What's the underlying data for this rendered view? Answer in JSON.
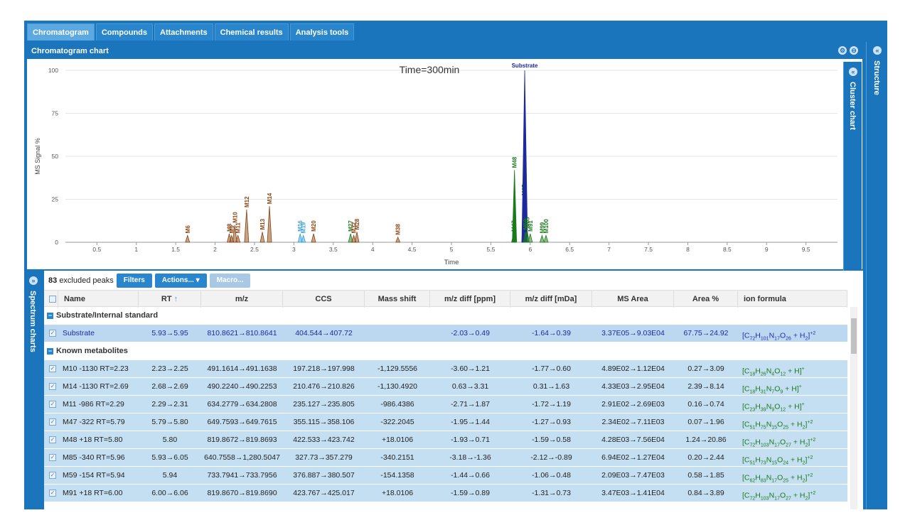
{
  "tabs": [
    "Chromatogram",
    "Compounds",
    "Attachments",
    "Chemical results",
    "Analysis tools"
  ],
  "chart_panel": {
    "title": "Chromatogram chart"
  },
  "side": {
    "structure": "Structure",
    "cluster": "Cluster chart",
    "spectrum": "Spectrum charts"
  },
  "chart_data": {
    "type": "line",
    "annotation": "Time=300min",
    "xlabel": "Time",
    "ylabel": "MS Signal %",
    "xlim": [
      0.1,
      9.9
    ],
    "ylim": [
      0,
      100
    ],
    "x_ticks": [
      "0.5",
      "1",
      "1.5",
      "2",
      "2.5",
      "3",
      "3.5",
      "4",
      "4.5",
      "5",
      "5.5",
      "6",
      "6.5",
      "7",
      "7.5",
      "8",
      "8.5",
      "9",
      "9.5"
    ],
    "y_ticks": [
      "0",
      "25",
      "50",
      "75",
      "100"
    ],
    "peaks": [
      {
        "label": "M6",
        "rt": 1.65,
        "h": 4,
        "color": "#8b4513"
      },
      {
        "label": "M8",
        "rt": 2.18,
        "h": 5,
        "color": "#8b4513"
      },
      {
        "label": "M9",
        "rt": 2.21,
        "h": 4,
        "color": "#8b4513"
      },
      {
        "label": "M10",
        "rt": 2.25,
        "h": 10,
        "color": "#8b4513"
      },
      {
        "label": "M11",
        "rt": 2.29,
        "h": 4,
        "color": "#8b4513"
      },
      {
        "label": "M12",
        "rt": 2.4,
        "h": 19,
        "color": "#8b4513"
      },
      {
        "label": "M13",
        "rt": 2.6,
        "h": 6,
        "color": "#8b4513"
      },
      {
        "label": "M14",
        "rt": 2.69,
        "h": 21,
        "color": "#8b4513"
      },
      {
        "label": "M16",
        "rt": 3.08,
        "h": 5,
        "color": "#3aa0d8"
      },
      {
        "label": "M19",
        "rt": 3.12,
        "h": 4,
        "color": "#3aa0d8"
      },
      {
        "label": "M20",
        "rt": 3.25,
        "h": 5,
        "color": "#8b4513"
      },
      {
        "label": "M27",
        "rt": 3.72,
        "h": 5,
        "color": "#1c7a1c"
      },
      {
        "label": "M28",
        "rt": 3.8,
        "h": 6,
        "color": "#8b4513"
      },
      {
        "label": "M32",
        "rt": 3.76,
        "h": 4,
        "color": "#8b4513"
      },
      {
        "label": "M38",
        "rt": 4.32,
        "h": 3,
        "color": "#8b4513"
      },
      {
        "label": "M47",
        "rt": 5.79,
        "h": 5,
        "color": "#1c7a1c"
      },
      {
        "label": "M48",
        "rt": 5.8,
        "h": 42,
        "color": "#1c7a1c"
      },
      {
        "label": "M67",
        "rt": 5.92,
        "h": 26,
        "color": "#1c7a1c"
      },
      {
        "label": "Substrate",
        "rt": 5.93,
        "h": 100,
        "color": "#1c2a9c"
      },
      {
        "label": "M59",
        "rt": 5.94,
        "h": 6,
        "color": "#1c7a1c"
      },
      {
        "label": "M85",
        "rt": 5.96,
        "h": 7,
        "color": "#1c7a1c"
      },
      {
        "label": "M91",
        "rt": 6.0,
        "h": 5,
        "color": "#1c7a1c"
      },
      {
        "label": "M99",
        "rt": 6.15,
        "h": 4,
        "color": "#1c7a1c"
      },
      {
        "label": "M100",
        "rt": 6.2,
        "h": 4,
        "color": "#1c7a1c"
      }
    ]
  },
  "toolbar": {
    "count": "83",
    "excluded_label": "excluded peaks",
    "filters": "Filters",
    "actions": "Actions...",
    "macro": "Macro..."
  },
  "columns": [
    "Name",
    "RT",
    "m/z",
    "CCS",
    "Mass shift",
    "m/z diff [ppm]",
    "m/z diff [mDa]",
    "MS Area",
    "Area %",
    "ion formula"
  ],
  "sort_arrow": "↑",
  "groups": [
    {
      "label": "Substrate/Internal standard",
      "rows": [
        {
          "name": "Substrate",
          "rt": "5.93→5.95",
          "mz": "810.8621→810.8641",
          "ccs": "404.544→407.72",
          "shift": "",
          "ppm": "-2.03→0.49",
          "mda": "-1.64→0.39",
          "area": "3.37E05→9.03E04",
          "pct": "67.75→24.92",
          "formula": [
            "[C",
            "72",
            "H",
            "101",
            "N",
            "17",
            "O",
            "26",
            " + H",
            "2",
            "]",
            "+2"
          ]
        }
      ]
    },
    {
      "label": "Known metabolites",
      "rows": [
        {
          "name": "M10 -1130 RT=2.23",
          "rt": "2.23→2.25",
          "mz": "491.1614→491.1638",
          "ccs": "197.218→197.998",
          "shift": "-1,129.5556",
          "ppm": "-3.60→1.21",
          "mda": "-1.77→0.60",
          "area": "4.89E02→1.12E04",
          "pct": "0.27→3.09",
          "formula": [
            "[C",
            "18",
            "H",
            "26",
            "N",
            "4",
            "O",
            "12",
            " + H",
            "",
            "]",
            "+"
          ]
        },
        {
          "name": "M14 -1130 RT=2.69",
          "rt": "2.68→2.69",
          "mz": "490.2240→490.2253",
          "ccs": "210.476→210.826",
          "shift": "-1,130.4920",
          "ppm": "0.63→3.31",
          "mda": "0.31→1.63",
          "area": "4.33E03→2.95E04",
          "pct": "2.39→8.14",
          "formula": [
            "[C",
            "18",
            "H",
            "31",
            "N",
            "7",
            "O",
            "9",
            " + H",
            "",
            "]",
            "+"
          ]
        },
        {
          "name": "M11 -986 RT=2.29",
          "rt": "2.29→2.31",
          "mz": "634.2779→634.2808",
          "ccs": "235.127→235.805",
          "shift": "-986.4386",
          "ppm": "-2.71→1.87",
          "mda": "-1.72→1.19",
          "area": "2.91E02→2.69E03",
          "pct": "0.16→0.74",
          "formula": [
            "[C",
            "23",
            "H",
            "39",
            "N",
            "9",
            "O",
            "12",
            " + H",
            "",
            "]",
            "+"
          ]
        },
        {
          "name": "M47 -322 RT=5.79",
          "rt": "5.79→5.80",
          "mz": "649.7593→649.7615",
          "ccs": "355.115→358.106",
          "shift": "-322.2045",
          "ppm": "-1.95→1.44",
          "mda": "-1.27→0.93",
          "area": "2.34E02→7.11E03",
          "pct": "0.07→1.96",
          "formula": [
            "[C",
            "51",
            "H",
            "75",
            "N",
            "15",
            "O",
            "25",
            " + H",
            "2",
            "]",
            "+2"
          ]
        },
        {
          "name": "M48 +18 RT=5.80",
          "rt": "5.80",
          "mz": "819.8672→819.8693",
          "ccs": "422.533→423.742",
          "shift": "+18.0106",
          "ppm": "-1.93→0.71",
          "mda": "-1.59→0.58",
          "area": "4.28E03→7.56E04",
          "pct": "1.24→20.86",
          "formula": [
            "[C",
            "72",
            "H",
            "103",
            "N",
            "17",
            "O",
            "27",
            " + H",
            "2",
            "]",
            "+2"
          ]
        },
        {
          "name": "M85 -340 RT=5.96",
          "rt": "5.93→6.05",
          "mz": "640.7558→1,280.5047",
          "ccs": "327.73→357.279",
          "shift": "-340.2151",
          "ppm": "-3.18→-1.36",
          "mda": "-2.12→-0.89",
          "area": "6.94E02→1.27E04",
          "pct": "0.20→2.44",
          "formula": [
            "[C",
            "51",
            "H",
            "73",
            "N",
            "15",
            "O",
            "24",
            " + H",
            "2",
            "]",
            "+2"
          ]
        },
        {
          "name": "M59 -154 RT=5.94",
          "rt": "5.94",
          "mz": "733.7941→733.7956",
          "ccs": "376.887→380.507",
          "shift": "-154.1358",
          "ppm": "-1.44→0.66",
          "mda": "-1.06→0.48",
          "area": "2.09E03→7.47E03",
          "pct": "0.58→1.85",
          "formula": [
            "[C",
            "62",
            "H",
            "83",
            "N",
            "17",
            "O",
            "25",
            " + H",
            "2",
            "]",
            "+2"
          ]
        },
        {
          "name": "M91 +18 RT=6.00",
          "rt": "6.00→6.06",
          "mz": "819.8670→819.8690",
          "ccs": "423.767→425.017",
          "shift": "+18.0106",
          "ppm": "-1.59→0.89",
          "mda": "-1.31→0.73",
          "area": "3.47E03→1.41E04",
          "pct": "0.84→3.89",
          "formula": [
            "[C",
            "72",
            "H",
            "103",
            "N",
            "17",
            "O",
            "27",
            " + H",
            "2",
            "]",
            "+2"
          ]
        }
      ]
    }
  ]
}
